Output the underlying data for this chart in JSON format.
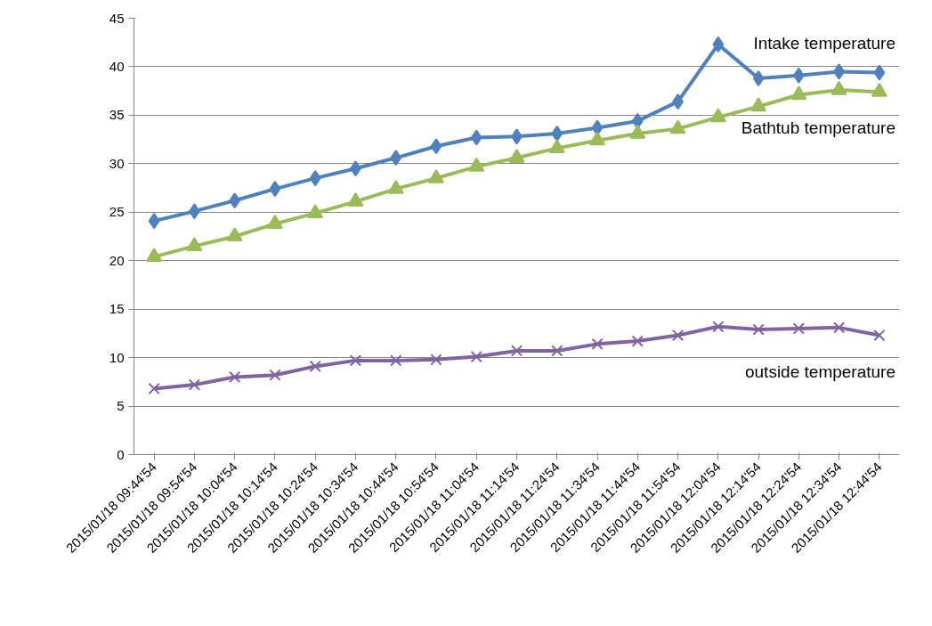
{
  "chart_data": {
    "type": "line",
    "categories": [
      "2015/01/18 09:44'54",
      "2015/01/18 09:54'54",
      "2015/01/18 10:04'54",
      "2015/01/18 10:14'54",
      "2015/01/18 10:24'54",
      "2015/01/18 10:34'54",
      "2015/01/18 10:44'54",
      "2015/01/18 10:54'54",
      "2015/01/18 11:04'54",
      "2015/01/18 11:14'54",
      "2015/01/18 11:24'54",
      "2015/01/18 11:34'54",
      "2015/01/18 11:44'54",
      "2015/01/18 11:54'54",
      "2015/01/18 12:04'54",
      "2015/01/18 12:14'54",
      "2015/01/18 12:24'54",
      "2015/01/18 12:34'54",
      "2015/01/18 12:44'54"
    ],
    "series": [
      {
        "name": "Intake temperature",
        "color": "#4f81bd",
        "marker": "diamond",
        "values": [
          24.1,
          25.1,
          26.2,
          27.4,
          28.5,
          29.5,
          30.6,
          31.8,
          32.7,
          32.8,
          33.1,
          33.7,
          34.4,
          36.4,
          42.3,
          38.8,
          39.1,
          39.5,
          39.4
        ]
      },
      {
        "name": "Bathtub temperature",
        "color": "#9bbb59",
        "marker": "triangle",
        "values": [
          20.4,
          21.5,
          22.5,
          23.8,
          24.9,
          26.1,
          27.4,
          28.5,
          29.7,
          30.6,
          31.6,
          32.4,
          33.1,
          33.6,
          34.8,
          35.9,
          37.1,
          37.6,
          37.4
        ]
      },
      {
        "name": "outside temperature",
        "color": "#8064a2",
        "marker": "cross",
        "values": [
          6.8,
          7.2,
          8.0,
          8.2,
          9.1,
          9.7,
          9.7,
          9.8,
          10.1,
          10.7,
          10.7,
          11.4,
          11.7,
          12.3,
          13.2,
          12.9,
          13.0,
          13.1,
          12.3
        ]
      }
    ],
    "ylim": [
      0,
      45
    ],
    "yticks": [
      0,
      5,
      10,
      15,
      20,
      25,
      30,
      35,
      40,
      45
    ],
    "grid": "y",
    "legend": false,
    "line_style": "solid"
  }
}
